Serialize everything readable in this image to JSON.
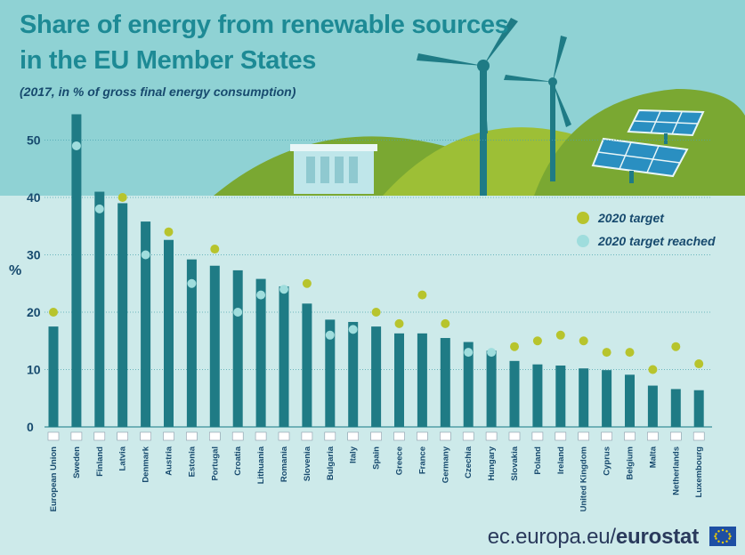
{
  "title_line1": "Share of energy from renewable sources",
  "title_line2": "in the EU Member States",
  "subtitle": "(2017, in % of gross final energy consumption)",
  "footer_domain": "ec.europa.eu/",
  "footer_brand": "eurostat",
  "colors": {
    "bar": "#1f7b85",
    "target": "#b7c42d",
    "target_reached": "#9fdddd",
    "title": "#1d8a95",
    "text": "#174a6e"
  },
  "chart_data": {
    "type": "bar",
    "title": "Share of energy from renewable sources in the EU Member States",
    "subtitle": "(2017, in % of gross final energy consumption)",
    "xlabel": "",
    "ylabel": "%",
    "ylim": [
      0,
      55
    ],
    "yticks": [
      "0",
      "10",
      "20",
      "30",
      "40",
      "50"
    ],
    "grid": true,
    "legend_position": "top-right",
    "legend": [
      "2020 target",
      "2020 target reached"
    ],
    "categories": [
      "European Union",
      "Sweden",
      "Finland",
      "Latvia",
      "Denmark",
      "Austria",
      "Estonia",
      "Portugal",
      "Croatia",
      "Lithuania",
      "Romania",
      "Slovenia",
      "Bulgaria",
      "Italy",
      "Spain",
      "Greece",
      "France",
      "Germany",
      "Czechia",
      "Hungary",
      "Slovakia",
      "Poland",
      "Ireland",
      "United Kingdom",
      "Cyprus",
      "Belgium",
      "Malta",
      "Netherlands",
      "Luxembourg"
    ],
    "series": [
      {
        "name": "",
        "values": [
          17.5,
          54.5,
          41.0,
          39.0,
          35.8,
          32.6,
          29.2,
          28.1,
          27.3,
          25.8,
          24.5,
          21.5,
          18.7,
          18.3,
          17.5,
          16.3,
          16.3,
          15.5,
          14.8,
          13.3,
          11.5,
          10.9,
          10.7,
          10.2,
          9.9,
          9.1,
          7.2,
          6.6,
          6.4
        ]
      },
      {
        "name": "2020 target",
        "values": [
          20,
          49,
          38,
          40,
          30,
          34,
          25,
          31,
          20,
          23,
          24,
          25,
          16,
          17,
          20,
          18,
          23,
          18,
          13,
          13,
          14,
          15,
          16,
          15,
          13,
          13,
          10,
          14,
          11
        ]
      }
    ],
    "target_reached": [
      false,
      true,
      true,
      false,
      true,
      false,
      true,
      false,
      true,
      true,
      true,
      false,
      true,
      true,
      false,
      false,
      false,
      false,
      true,
      true,
      false,
      false,
      false,
      false,
      false,
      false,
      false,
      false,
      false
    ]
  }
}
